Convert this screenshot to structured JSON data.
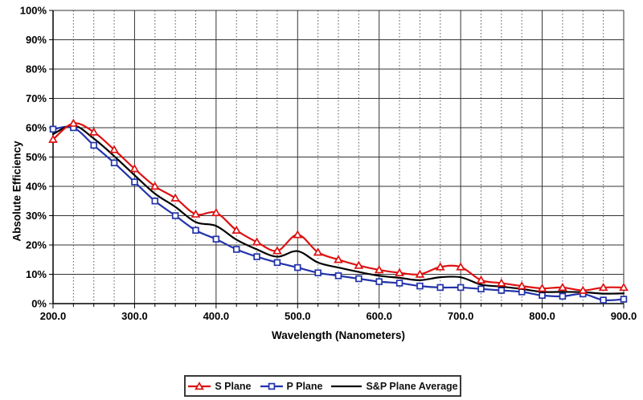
{
  "chart_data": {
    "type": "line",
    "title": "",
    "xlabel": "Wavelength (Nanometers)",
    "ylabel": "Absolute Efficiency",
    "x_axis": {
      "min": 200,
      "max": 900,
      "major_step": 100,
      "minor_step": 25
    },
    "y_axis": {
      "min": 0,
      "max": 100,
      "major_step": 10
    },
    "x_tick_labels": [
      "200.0",
      "300.0",
      "400.0",
      "500.0",
      "600.0",
      "700.0",
      "800.0",
      "900.0"
    ],
    "y_tick_labels": [
      "0%",
      "10%",
      "20%",
      "30%",
      "40%",
      "50%",
      "60%",
      "70%",
      "80%",
      "90%",
      "100%"
    ],
    "grid": {
      "major": true,
      "minor_vertical_dotted": true,
      "major_color": "#333333",
      "minor_color": "#555555"
    },
    "legend_position": "bottom",
    "x": [
      200,
      225,
      250,
      275,
      300,
      325,
      350,
      375,
      400,
      425,
      450,
      475,
      500,
      525,
      550,
      575,
      600,
      625,
      650,
      675,
      700,
      725,
      750,
      775,
      800,
      825,
      850,
      875,
      900
    ],
    "series": [
      {
        "name": "S Plane",
        "color": "#dd1111",
        "marker": "triangle",
        "values": [
          56,
          61.5,
          58.5,
          52.5,
          46,
          40,
          36,
          30.5,
          31,
          25,
          21,
          18,
          23.5,
          17.5,
          15,
          13,
          11.5,
          10.5,
          10,
          12.5,
          12.5,
          8,
          7,
          6,
          5.2,
          5.5,
          4.5,
          5.5,
          5.5
        ]
      },
      {
        "name": "P Plane",
        "color": "#2233aa",
        "marker": "square",
        "values": [
          59.5,
          60,
          54,
          48,
          41.5,
          35,
          30,
          25,
          22,
          18.5,
          16,
          14,
          12.3,
          10.5,
          9.5,
          8.5,
          7.5,
          7,
          6,
          5.5,
          5.5,
          5,
          4.5,
          4,
          2.8,
          2.5,
          3.3,
          1.2,
          1.5
        ]
      },
      {
        "name": "S&P Plane Average",
        "color": "#000000",
        "marker": "none",
        "values": [
          57.8,
          60.8,
          56.3,
          50.3,
          43.8,
          37.5,
          33,
          27.8,
          26.5,
          21.8,
          18.5,
          16,
          17.9,
          14,
          12.3,
          10.8,
          9.5,
          8.8,
          8,
          9,
          9,
          6.5,
          5.8,
          5,
          4,
          4,
          3.9,
          3.4,
          3.5
        ]
      }
    ]
  }
}
